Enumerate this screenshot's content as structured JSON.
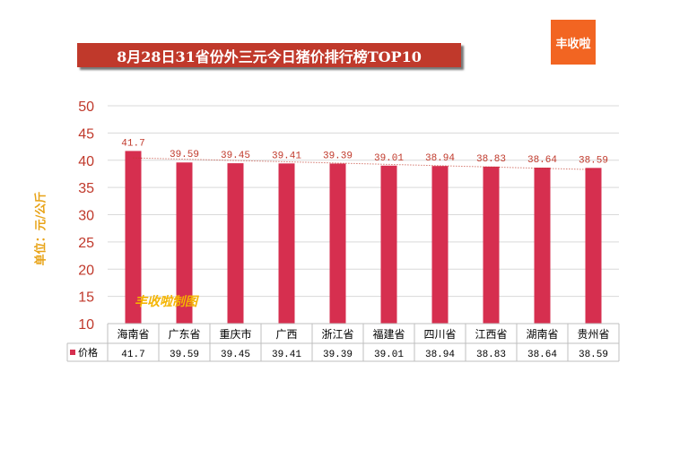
{
  "title": "8月28日31省份外三元今日猪价排行榜TOP10",
  "logo_text": "丰收啦",
  "watermark": "丰收啦制图",
  "colors": {
    "bar": "#d62f4f",
    "axis_text": "#c0392b",
    "title_bg": "#c0392b",
    "logo_bg": "#f26522",
    "ylabel": "#e8a317"
  },
  "chart_data": {
    "type": "bar",
    "categories": [
      "海南省",
      "广东省",
      "重庆市",
      "广西",
      "浙江省",
      "福建省",
      "四川省",
      "江西省",
      "湖南省",
      "贵州省"
    ],
    "series": [
      {
        "name": "价格",
        "values": [
          41.7,
          39.59,
          39.45,
          39.41,
          39.39,
          39.01,
          38.94,
          38.83,
          38.64,
          38.59
        ]
      }
    ],
    "data_labels": [
      "41.7",
      "39.59",
      "39.45",
      "39.41",
      "39.39",
      "39.01",
      "38.94",
      "38.83",
      "38.64",
      "38.59"
    ],
    "ylabel": "单位：元/公斤",
    "ylim": [
      10,
      50
    ],
    "yticks": [
      10,
      15,
      20,
      25,
      30,
      35,
      40,
      45,
      50
    ],
    "grid": true,
    "trendline": true,
    "legend": "data-table"
  }
}
